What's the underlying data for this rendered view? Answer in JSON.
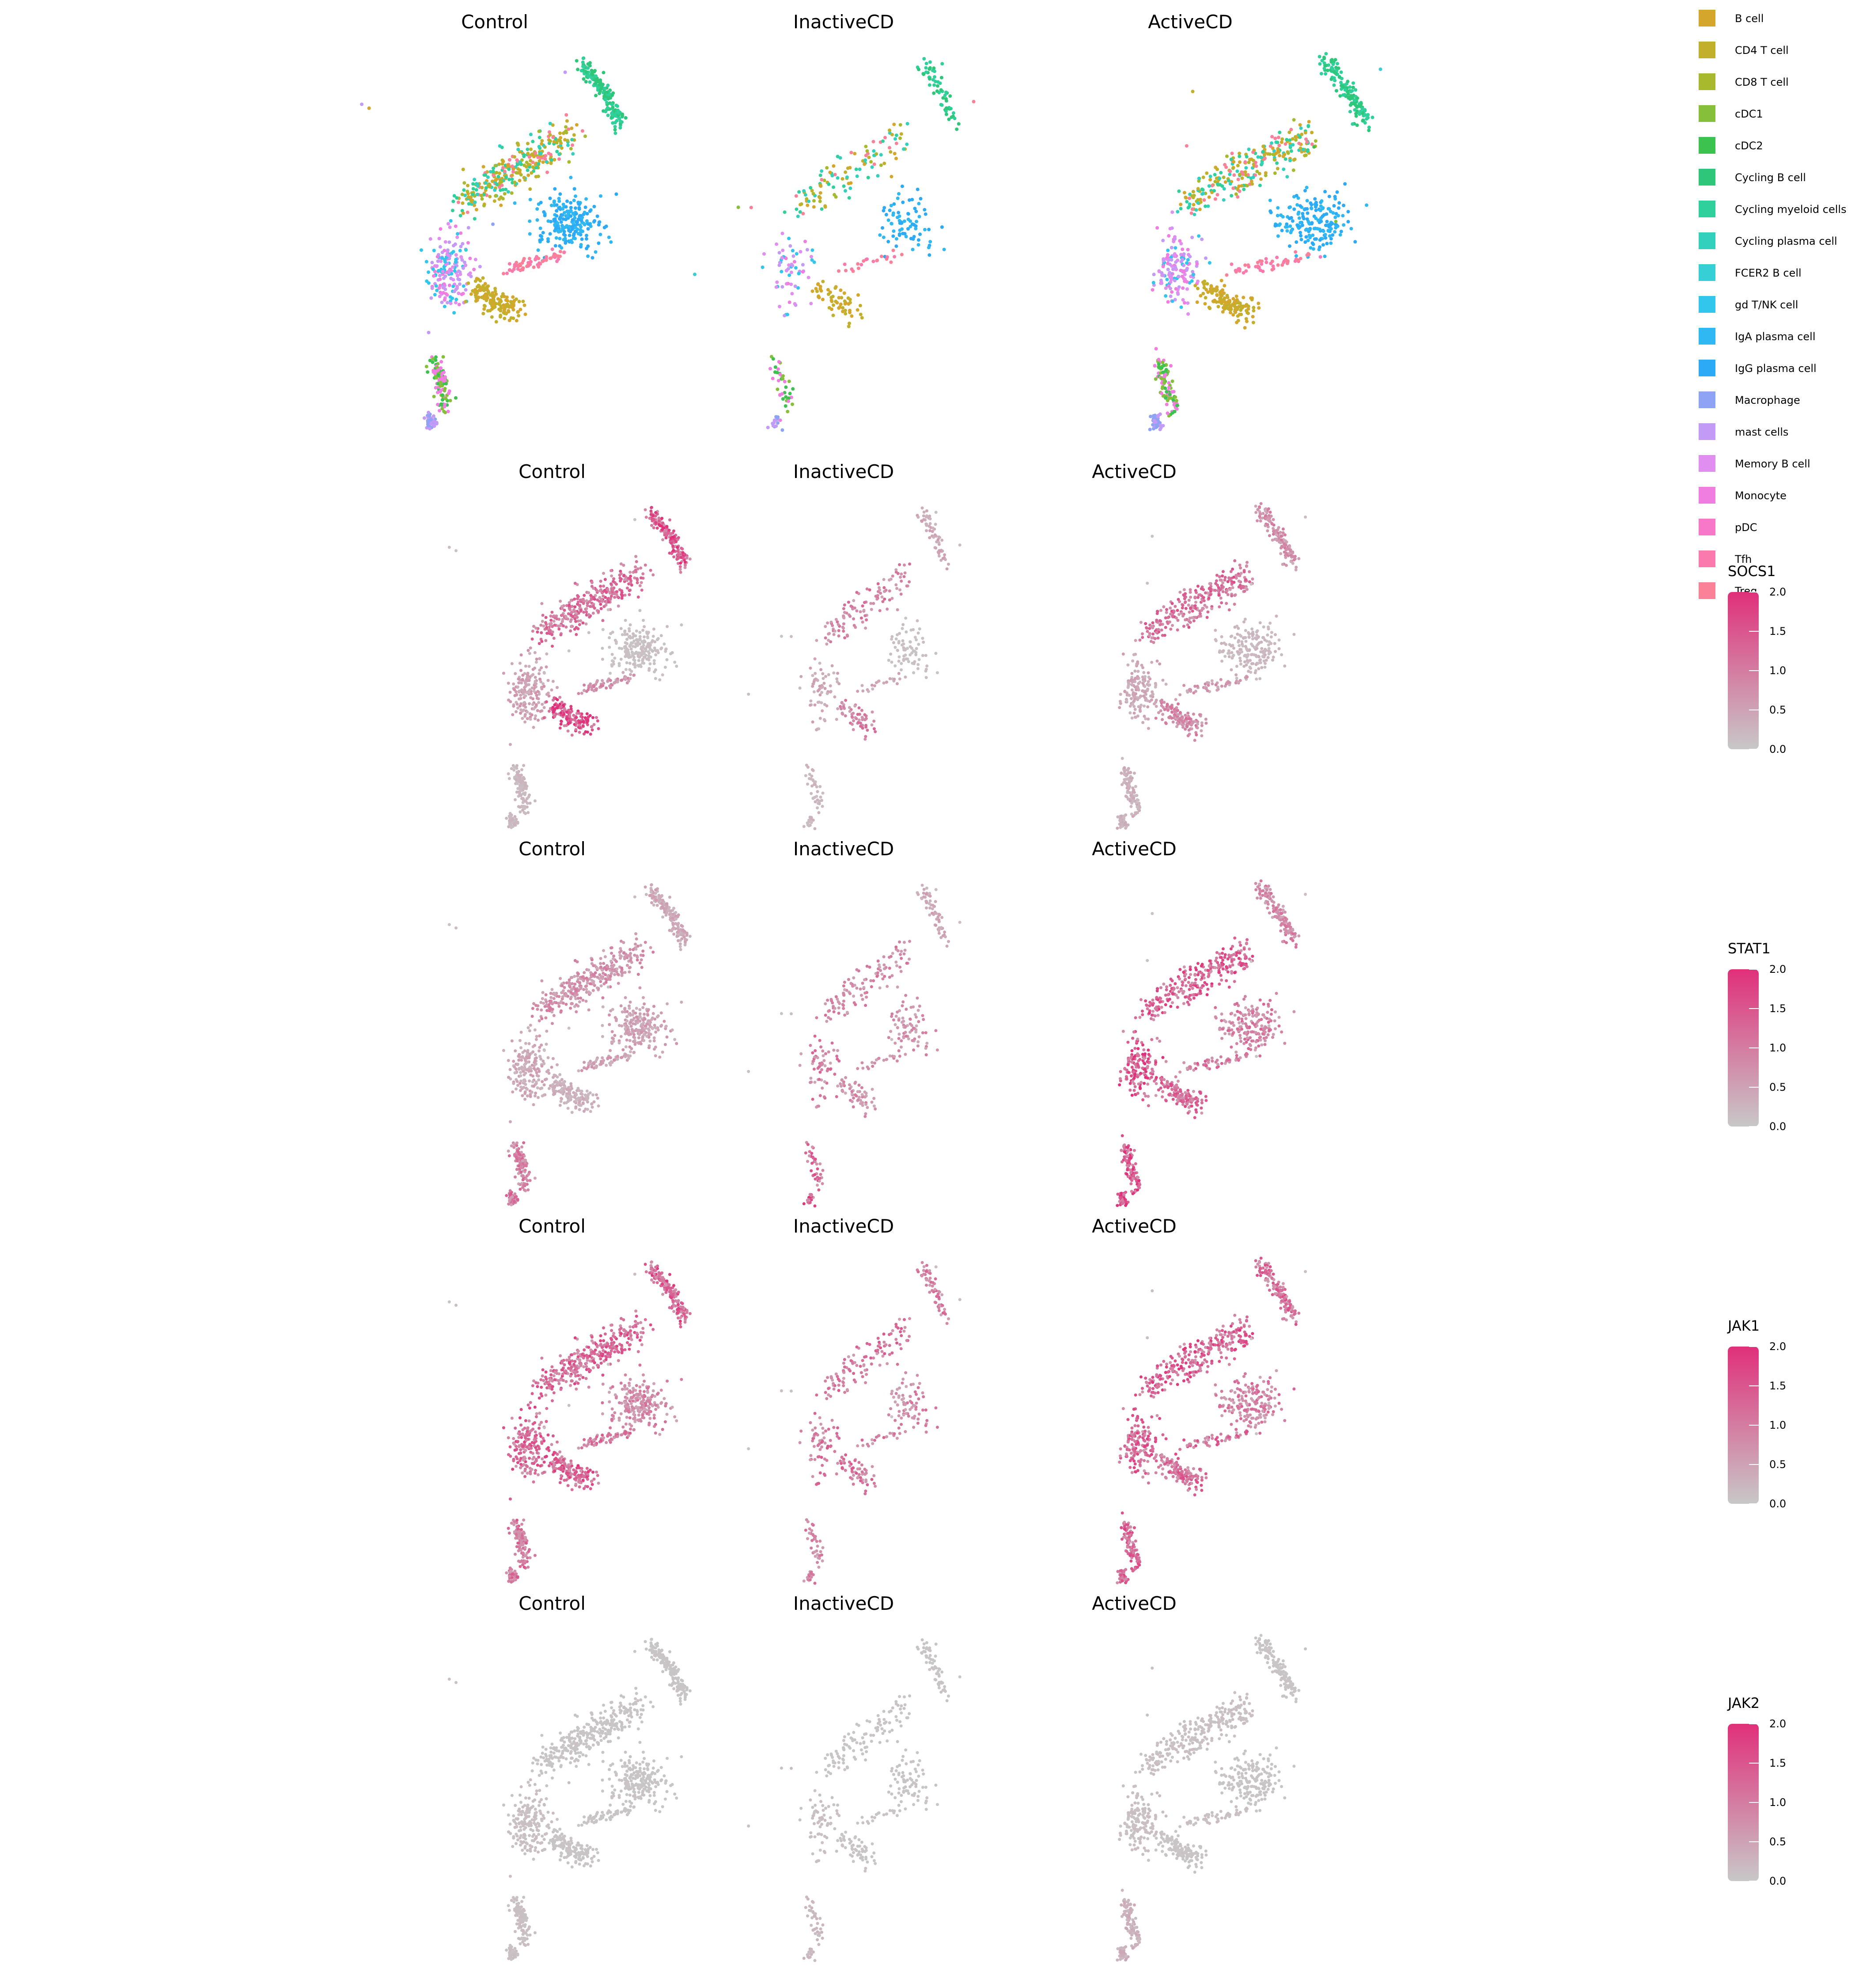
{
  "chart_data": {
    "type": "scatter",
    "conditions": [
      "Control",
      "InactiveCD",
      "ActiveCD"
    ],
    "rows": [
      {
        "kind": "celltype",
        "panel_titles": [
          "Control",
          "InactiveCD",
          "ActiveCD"
        ]
      },
      {
        "kind": "expression",
        "gene": "SOCS1",
        "panel_titles": [
          "Control",
          "InactiveCD",
          "ActiveCD"
        ]
      },
      {
        "kind": "expression",
        "gene": "STAT1",
        "panel_titles": [
          "Control",
          "InactiveCD",
          "ActiveCD"
        ]
      },
      {
        "kind": "expression",
        "gene": "JAK1",
        "panel_titles": [
          "Control",
          "InactiveCD",
          "ActiveCD"
        ]
      },
      {
        "kind": "expression",
        "gene": "JAK2",
        "panel_titles": [
          "Control",
          "InactiveCD",
          "ActiveCD"
        ]
      }
    ],
    "celltype_legend": [
      {
        "label": "B cell",
        "color": "#d4a72c"
      },
      {
        "label": "CD4 T cell",
        "color": "#c2b02c"
      },
      {
        "label": "CD8 T cell",
        "color": "#a9b92e"
      },
      {
        "label": "cDC1",
        "color": "#86c03a"
      },
      {
        "label": "cDC2",
        "color": "#3cc24f"
      },
      {
        "label": "Cycling B cell",
        "color": "#2ec77a"
      },
      {
        "label": "Cycling myeloid cells",
        "color": "#2fd09c"
      },
      {
        "label": "Cycling plasma cell",
        "color": "#33d1bd"
      },
      {
        "label": "FCER2 B cell",
        "color": "#36cfd6"
      },
      {
        "label": "gd T/NK cell",
        "color": "#33c6ec"
      },
      {
        "label": "IgA plasma cell",
        "color": "#30b8f2"
      },
      {
        "label": "IgG plasma cell",
        "color": "#2daaf5"
      },
      {
        "label": "Macrophage",
        "color": "#8fa3f5"
      },
      {
        "label": "mast cells",
        "color": "#c39af5"
      },
      {
        "label": "Memory B cell",
        "color": "#e08ef0"
      },
      {
        "label": "Monocyte",
        "color": "#f07ee0"
      },
      {
        "label": "pDC",
        "color": "#f777c8"
      },
      {
        "label": "Tfh",
        "color": "#fa7aad"
      },
      {
        "label": "Treg",
        "color": "#fb8199"
      }
    ],
    "expression_scale": {
      "ticks": [
        "2.0",
        "1.5",
        "1.0",
        "0.5",
        "0.0"
      ],
      "range": [
        0,
        2
      ],
      "low_color": "#c8c8c8",
      "high_color": "#e0307a"
    },
    "cluster_mix": [
      {
        "name": "upper_arc",
        "types": [
          "Cycling B cell",
          "Cycling myeloid cells"
        ]
      },
      {
        "name": "band",
        "types": [
          "CD8 T cell",
          "CD4 T cell",
          "B cell",
          "Treg",
          "Cycling plasma cell",
          "Cycling myeloid cells"
        ]
      },
      {
        "name": "plasma_blob",
        "types": [
          "IgA plasma cell",
          "IgG plasma cell"
        ]
      },
      {
        "name": "connector",
        "types": [
          "Treg",
          "Tfh"
        ]
      },
      {
        "name": "myeloid_blob",
        "types": [
          "Memory B cell",
          "mast cells",
          "Monocyte",
          "gd T/NK cell"
        ]
      },
      {
        "name": "b_lobe",
        "types": [
          "B cell",
          "CD4 T cell"
        ]
      },
      {
        "name": "stem",
        "types": [
          "cDC2",
          "cDC1",
          "Monocyte"
        ]
      },
      {
        "name": "stem_bottom",
        "types": [
          "Macrophage",
          "mast cells"
        ]
      }
    ],
    "expression_levels": {
      "SOCS1": {
        "Control": {
          "upper_arc": 1.4,
          "band": 1.1,
          "plasma_blob": 0.1,
          "connector": 0.7,
          "myeloid_blob": 0.5,
          "b_lobe": 1.6,
          "stem": 0.2,
          "stem_bottom": 0.2
        },
        "InactiveCD": {
          "upper_arc": 0.4,
          "band": 0.9,
          "plasma_blob": 0.1,
          "connector": 0.4,
          "myeloid_blob": 0.4,
          "b_lobe": 0.9,
          "stem": 0.2,
          "stem_bottom": 0.2
        },
        "ActiveCD": {
          "upper_arc": 0.7,
          "band": 1.1,
          "plasma_blob": 0.2,
          "connector": 0.6,
          "myeloid_blob": 0.4,
          "b_lobe": 0.8,
          "stem": 0.3,
          "stem_bottom": 0.3
        }
      },
      "STAT1": {
        "Control": {
          "upper_arc": 0.4,
          "band": 0.7,
          "plasma_blob": 0.5,
          "connector": 0.5,
          "myeloid_blob": 0.4,
          "b_lobe": 0.3,
          "stem": 0.9,
          "stem_bottom": 1.0
        },
        "InactiveCD": {
          "upper_arc": 0.4,
          "band": 0.8,
          "plasma_blob": 0.7,
          "connector": 0.7,
          "myeloid_blob": 0.9,
          "b_lobe": 0.7,
          "stem": 1.1,
          "stem_bottom": 1.3
        },
        "ActiveCD": {
          "upper_arc": 0.8,
          "band": 1.3,
          "plasma_blob": 0.9,
          "connector": 1.0,
          "myeloid_blob": 1.4,
          "b_lobe": 1.1,
          "stem": 1.5,
          "stem_bottom": 1.6
        }
      },
      "JAK1": {
        "Control": {
          "upper_arc": 1.3,
          "band": 1.2,
          "plasma_blob": 0.8,
          "connector": 1.0,
          "myeloid_blob": 1.2,
          "b_lobe": 1.3,
          "stem": 1.0,
          "stem_bottom": 1.0
        },
        "InactiveCD": {
          "upper_arc": 0.9,
          "band": 1.0,
          "plasma_blob": 0.8,
          "connector": 0.9,
          "myeloid_blob": 1.0,
          "b_lobe": 1.0,
          "stem": 0.9,
          "stem_bottom": 0.9
        },
        "ActiveCD": {
          "upper_arc": 1.1,
          "band": 1.3,
          "plasma_blob": 0.9,
          "connector": 1.1,
          "myeloid_blob": 1.2,
          "b_lobe": 1.1,
          "stem": 1.2,
          "stem_bottom": 1.2
        }
      },
      "JAK2": {
        "Control": {
          "upper_arc": 0.05,
          "band": 0.05,
          "plasma_blob": 0.05,
          "connector": 0.05,
          "myeloid_blob": 0.1,
          "b_lobe": 0.05,
          "stem": 0.1,
          "stem_bottom": 0.1
        },
        "InactiveCD": {
          "upper_arc": 0.05,
          "band": 0.05,
          "plasma_blob": 0.05,
          "connector": 0.05,
          "myeloid_blob": 0.1,
          "b_lobe": 0.05,
          "stem": 0.2,
          "stem_bottom": 0.2
        },
        "ActiveCD": {
          "upper_arc": 0.05,
          "band": 0.1,
          "plasma_blob": 0.05,
          "connector": 0.1,
          "myeloid_blob": 0.1,
          "b_lobe": 0.05,
          "stem": 0.3,
          "stem_bottom": 0.3
        }
      }
    },
    "density": {
      "Control": 1.0,
      "InactiveCD": 0.35,
      "ActiveCD": 0.85
    }
  }
}
